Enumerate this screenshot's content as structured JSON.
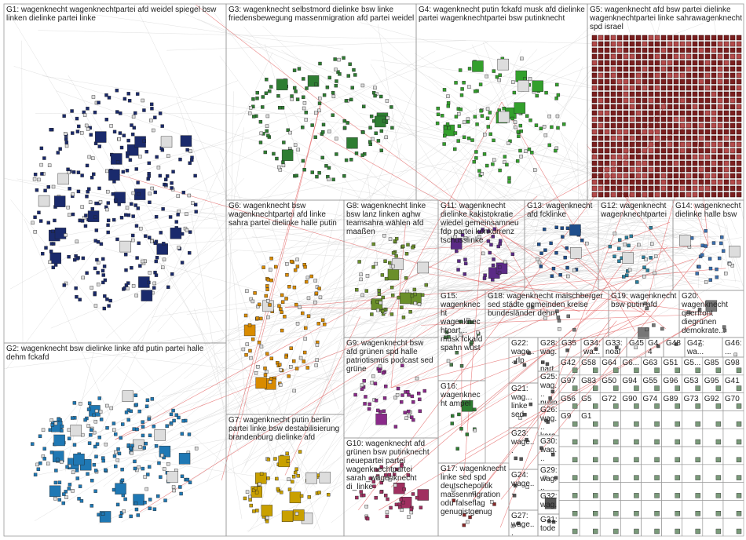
{
  "groups": [
    "G1: wagenknecht wagenknechtpartei afd weidel spiegel bsw linken dielinke partei linke",
    "G2: wagenknecht bsw dielinke linke afd putin partei halle dehm fckafd",
    "G3: wagenknecht selbstmord dielinke bsw linke friedensbewegung massenmigration afd partei weidel",
    "G4: wagenknecht putin fckafd musk afd dielinke partei wagenknechtpartei bsw putinknecht",
    "G5: wagenknecht afd bsw partei dielinke wagenknechtpartei linke sahrawagenknecht spd israel",
    "G6: wagenknecht bsw wagenknechtpartei afd linke sahra partei dielinke halle putin",
    "G8: wagenknecht linke bsw lanz linken aghw teamsahra wählen afd maaßen",
    "G11: wagenknecht dielinke kakistokratie wiedel gemeinsamneu fdp partei konkurrenz tschusslinke",
    "G13: wagenknecht afd fcklinke",
    "G12: wagenknecht wagenknechtpartei",
    "G14: wagenknecht dielinke halle bsw",
    "G7: wagenknecht putin berlin partei linke bsw destabilisierung brandenburg dielinke afd",
    "G9: wagenknecht bsw afd grünen spd halle patriotismus podcast sed grüne",
    "G10: wagenknecht afd grünen bsw putinknecht neuepartei partei wagenknechtpartei sarah_wagenknecht di_linke",
    "G15: wagenknecht wagenknechtpart... musk fckafd spahn wüst",
    "G18: wagenknecht maischberger sed städte gemeinden kreise bundesländer dehm",
    "G19: wagenknecht bsw putin afd",
    "G20: wagenknecht querfront diegrünen demokrate...",
    "G16: wagenknecht ampel",
    "G17: wagenknecht linke sed spd deutschepolitik massenmigration odu falseflag genugistgenug",
    "G22: wage... rlp",
    "G21: wag... linke sed",
    "G23: wage...",
    "G24: wage...",
    "G27: wage...",
    "G28: wag... partei",
    "G25: wag... putin",
    "G26: wag... kara...",
    "G30: wag...",
    "G29: wag...",
    "G32: wag...",
    "G31: tode...",
    "G35",
    "G34: wa...",
    "G33: noafd",
    "G45",
    "G44",
    "G48",
    "G47: wa...",
    "G46: ..."
  ],
  "minor_groups": [
    "G42",
    "G58",
    "G64",
    "G6...",
    "G63",
    "G51",
    "G5...",
    "G85",
    "G98",
    "G97",
    "G83",
    "G50",
    "G94",
    "G55",
    "G96",
    "G53",
    "G95",
    "G41",
    "G56",
    "G5",
    "G72",
    "G90",
    "G74",
    "G89",
    "G73",
    "G92",
    "G70",
    "G9",
    "G1"
  ]
}
